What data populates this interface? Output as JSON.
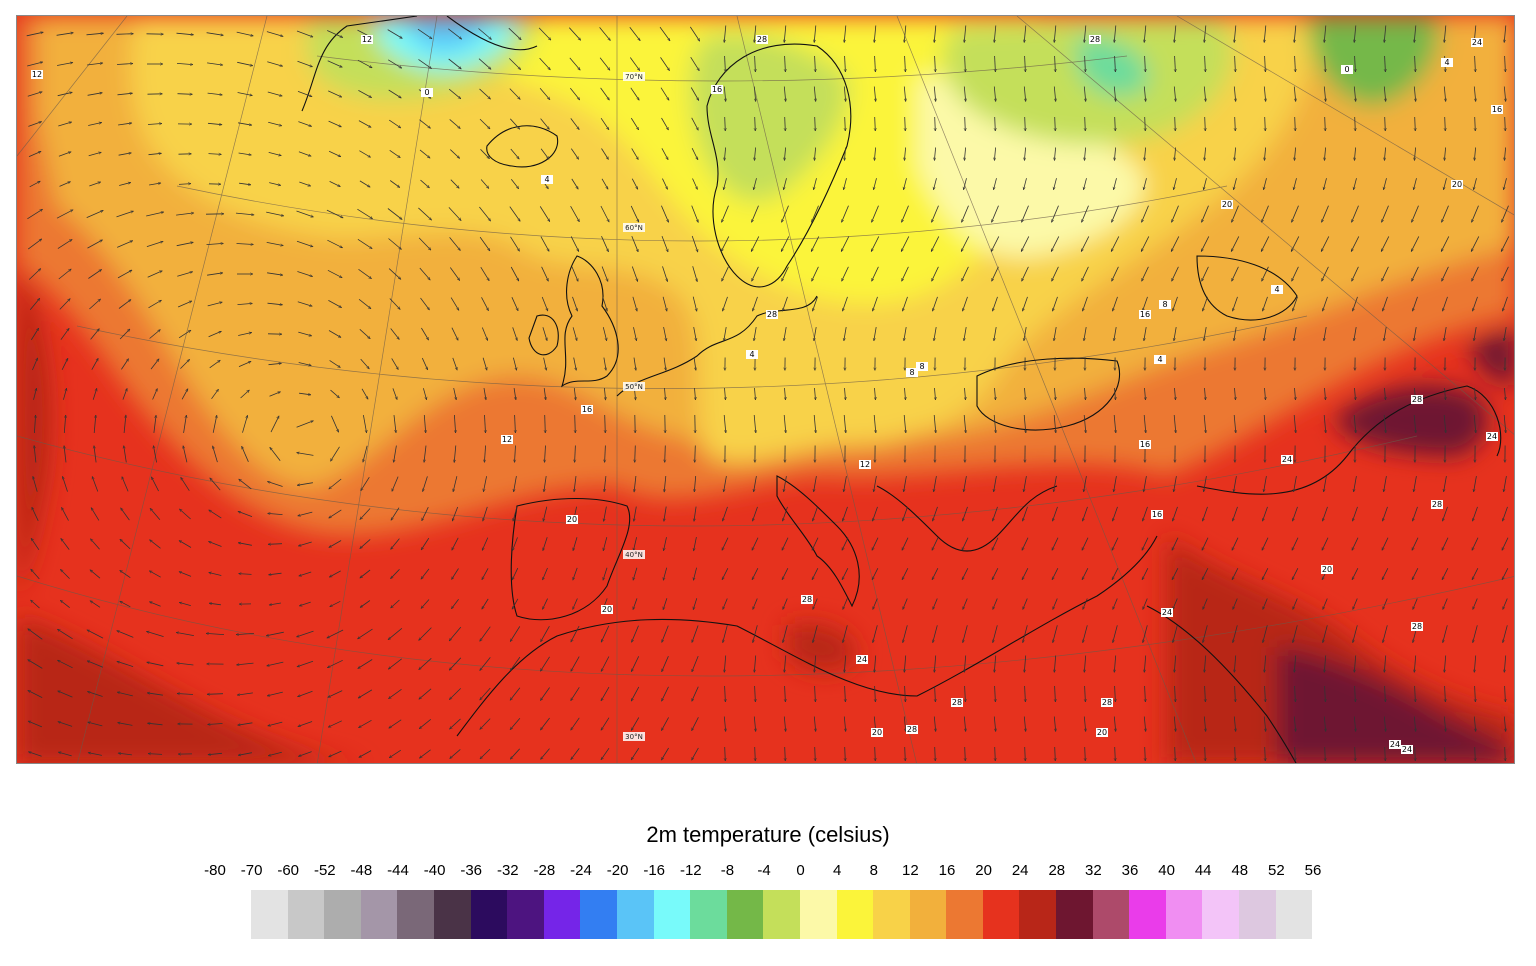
{
  "map": {
    "latitude_labels": [
      "70°N",
      "60°N",
      "50°N",
      "40°N",
      "30°N"
    ],
    "temperature_labels": [
      "12",
      "12",
      "0",
      "4",
      "4",
      "8",
      "16",
      "8",
      "4",
      "0",
      "4",
      "12",
      "16",
      "20",
      "20",
      "12",
      "8",
      "4",
      "16",
      "28",
      "24",
      "24",
      "16",
      "28",
      "20",
      "28",
      "24",
      "28",
      "20",
      "28",
      "28",
      "20",
      "24",
      "28",
      "24",
      "24",
      "20",
      "16",
      "28",
      "28",
      "28",
      "24",
      "16",
      "20"
    ]
  },
  "legend": {
    "title": "2m temperature (celsius)",
    "ticks": [
      "-80",
      "-70",
      "-60",
      "-52",
      "-48",
      "-44",
      "-40",
      "-36",
      "-32",
      "-28",
      "-24",
      "-20",
      "-16",
      "-12",
      "-8",
      "-4",
      "0",
      "4",
      "8",
      "12",
      "16",
      "20",
      "24",
      "28",
      "32",
      "36",
      "40",
      "44",
      "48",
      "52",
      "56"
    ],
    "colors": [
      "#e3e3e3",
      "#c8c8c8",
      "#adadad",
      "#a496a8",
      "#7a6878",
      "#4a3347",
      "#2c0b5e",
      "#4d1480",
      "#7525e8",
      "#337ef2",
      "#5ac4f7",
      "#78fafa",
      "#6cdc9c",
      "#74b848",
      "#c4df5a",
      "#fcf9a8",
      "#fbf43a",
      "#f8d248",
      "#f2b03c",
      "#ec7832",
      "#e6321e",
      "#b82618",
      "#6e1630",
      "#ad4a6a",
      "#ea3cea",
      "#f08ef2",
      "#f3c4f8",
      "#ddc8e0",
      "#e3e3e3"
    ]
  }
}
